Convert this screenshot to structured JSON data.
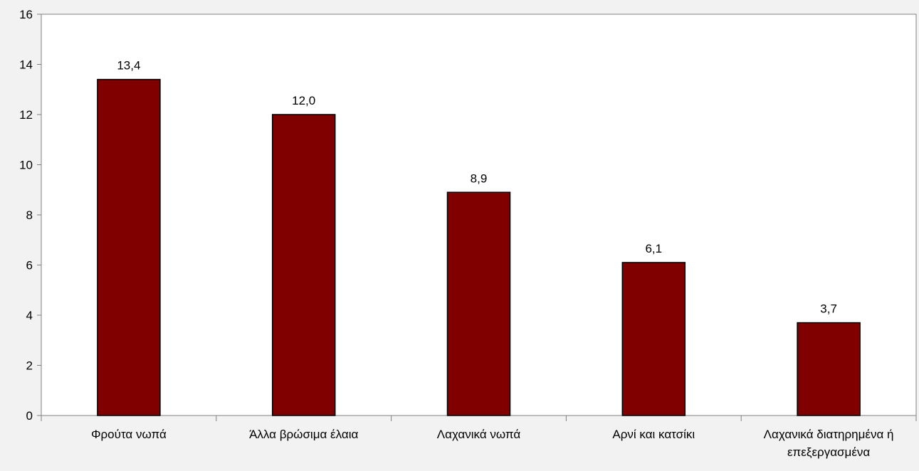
{
  "chart_data": {
    "type": "bar",
    "title": "",
    "xlabel": "",
    "ylabel": "",
    "categories": [
      [
        "Φρούτα νωπά"
      ],
      [
        "Άλλα βρώσιμα έλαια"
      ],
      [
        "Λαχανικά νωπά"
      ],
      [
        "Αρνί και κατσίκι"
      ],
      [
        "Λαχανικά διατηρημένα ή",
        "επεξεργασμένα"
      ]
    ],
    "values": [
      13.4,
      12.0,
      8.9,
      6.1,
      3.7
    ],
    "value_labels": [
      "13,4",
      "12,0",
      "8,9",
      "6,1",
      "3,7"
    ],
    "ylim": [
      0,
      16
    ],
    "yticks": [
      0,
      2,
      4,
      6,
      8,
      10,
      12,
      14,
      16
    ],
    "grid": false,
    "legend": "none",
    "colors": {
      "bar_fill": "#800000",
      "bar_stroke": "#000000",
      "plot_background": "#ffffff",
      "page_background": "#f2f2f2",
      "axis": "#808080"
    }
  }
}
